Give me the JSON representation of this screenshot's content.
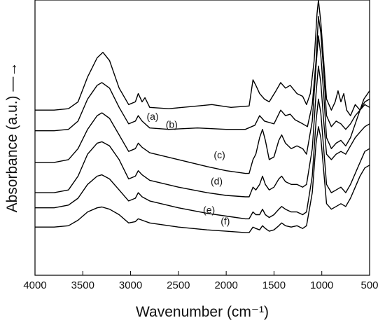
{
  "chart_data": {
    "type": "line",
    "title": "",
    "xlabel": "Wavenumber (cm⁻¹)",
    "ylabel": "Absorbance (a.u.) —→",
    "xlim": [
      4000,
      500
    ],
    "x_reversed": true,
    "y_ticks_shown": false,
    "grid": false,
    "legend": "none",
    "xticks": [
      4000,
      3500,
      3000,
      2500,
      2000,
      1500,
      1000,
      500
    ],
    "xtick_labels": [
      "4000",
      "3500",
      "3000",
      "2500",
      "2000",
      "1500",
      "1000",
      "500"
    ],
    "series": [
      {
        "name": "(a)",
        "label_at": [
          2770,
          0.565
        ],
        "points": [
          [
            4000,
            0.6
          ],
          [
            3800,
            0.6
          ],
          [
            3650,
            0.605
          ],
          [
            3550,
            0.63
          ],
          [
            3450,
            0.72
          ],
          [
            3350,
            0.79
          ],
          [
            3290,
            0.81
          ],
          [
            3220,
            0.78
          ],
          [
            3120,
            0.68
          ],
          [
            3020,
            0.62
          ],
          [
            2950,
            0.63
          ],
          [
            2920,
            0.66
          ],
          [
            2880,
            0.63
          ],
          [
            2850,
            0.645
          ],
          [
            2800,
            0.61
          ],
          [
            2600,
            0.605
          ],
          [
            2300,
            0.615
          ],
          [
            2150,
            0.62
          ],
          [
            1950,
            0.61
          ],
          [
            1760,
            0.615
          ],
          [
            1720,
            0.71
          ],
          [
            1690,
            0.69
          ],
          [
            1650,
            0.66
          ],
          [
            1600,
            0.64
          ],
          [
            1550,
            0.63
          ],
          [
            1480,
            0.67
          ],
          [
            1430,
            0.7
          ],
          [
            1380,
            0.68
          ],
          [
            1330,
            0.69
          ],
          [
            1260,
            0.66
          ],
          [
            1200,
            0.65
          ],
          [
            1160,
            0.62
          ],
          [
            1120,
            0.66
          ],
          [
            1080,
            0.78
          ],
          [
            1050,
            0.95
          ],
          [
            1035,
            1.0
          ],
          [
            1010,
            0.92
          ],
          [
            980,
            0.78
          ],
          [
            950,
            0.64
          ],
          [
            900,
            0.6
          ],
          [
            860,
            0.63
          ],
          [
            830,
            0.67
          ],
          [
            800,
            0.63
          ],
          [
            770,
            0.66
          ],
          [
            740,
            0.6
          ],
          [
            700,
            0.58
          ],
          [
            650,
            0.62
          ],
          [
            600,
            0.6
          ],
          [
            560,
            0.64
          ],
          [
            520,
            0.66
          ],
          [
            500,
            0.67
          ]
        ]
      },
      {
        "name": "(b)",
        "label_at": [
          2570,
          0.535
        ],
        "points": [
          [
            4000,
            0.525
          ],
          [
            3800,
            0.525
          ],
          [
            3650,
            0.53
          ],
          [
            3550,
            0.56
          ],
          [
            3450,
            0.64
          ],
          [
            3350,
            0.69
          ],
          [
            3300,
            0.7
          ],
          [
            3220,
            0.68
          ],
          [
            3120,
            0.61
          ],
          [
            3020,
            0.55
          ],
          [
            2950,
            0.56
          ],
          [
            2920,
            0.58
          ],
          [
            2880,
            0.56
          ],
          [
            2800,
            0.535
          ],
          [
            2600,
            0.53
          ],
          [
            2300,
            0.535
          ],
          [
            2000,
            0.53
          ],
          [
            1800,
            0.53
          ],
          [
            1700,
            0.545
          ],
          [
            1650,
            0.58
          ],
          [
            1600,
            0.56
          ],
          [
            1500,
            0.55
          ],
          [
            1430,
            0.6
          ],
          [
            1380,
            0.58
          ],
          [
            1330,
            0.585
          ],
          [
            1280,
            0.565
          ],
          [
            1200,
            0.55
          ],
          [
            1150,
            0.54
          ],
          [
            1100,
            0.62
          ],
          [
            1060,
            0.78
          ],
          [
            1035,
            0.94
          ],
          [
            1010,
            0.88
          ],
          [
            980,
            0.74
          ],
          [
            950,
            0.58
          ],
          [
            900,
            0.54
          ],
          [
            850,
            0.56
          ],
          [
            800,
            0.55
          ],
          [
            750,
            0.53
          ],
          [
            700,
            0.55
          ],
          [
            650,
            0.58
          ],
          [
            600,
            0.6
          ],
          [
            550,
            0.63
          ],
          [
            500,
            0.64
          ]
        ]
      },
      {
        "name": "(c)",
        "label_at": [
          2070,
          0.425
        ],
        "points": [
          [
            4000,
            0.41
          ],
          [
            3800,
            0.41
          ],
          [
            3650,
            0.42
          ],
          [
            3550,
            0.46
          ],
          [
            3450,
            0.53
          ],
          [
            3350,
            0.58
          ],
          [
            3300,
            0.59
          ],
          [
            3220,
            0.57
          ],
          [
            3120,
            0.51
          ],
          [
            3020,
            0.45
          ],
          [
            2950,
            0.46
          ],
          [
            2920,
            0.48
          ],
          [
            2880,
            0.465
          ],
          [
            2800,
            0.445
          ],
          [
            2500,
            0.42
          ],
          [
            2200,
            0.395
          ],
          [
            2000,
            0.38
          ],
          [
            1800,
            0.37
          ],
          [
            1760,
            0.37
          ],
          [
            1720,
            0.42
          ],
          [
            1690,
            0.44
          ],
          [
            1650,
            0.5
          ],
          [
            1620,
            0.53
          ],
          [
            1590,
            0.49
          ],
          [
            1550,
            0.42
          ],
          [
            1500,
            0.43
          ],
          [
            1450,
            0.49
          ],
          [
            1420,
            0.51
          ],
          [
            1380,
            0.48
          ],
          [
            1320,
            0.46
          ],
          [
            1260,
            0.47
          ],
          [
            1200,
            0.46
          ],
          [
            1160,
            0.44
          ],
          [
            1100,
            0.56
          ],
          [
            1060,
            0.76
          ],
          [
            1035,
            0.87
          ],
          [
            1010,
            0.8
          ],
          [
            980,
            0.66
          ],
          [
            950,
            0.5
          ],
          [
            900,
            0.46
          ],
          [
            850,
            0.48
          ],
          [
            800,
            0.49
          ],
          [
            750,
            0.47
          ],
          [
            700,
            0.5
          ],
          [
            650,
            0.55
          ],
          [
            600,
            0.6
          ],
          [
            550,
            0.62
          ],
          [
            500,
            0.61
          ]
        ]
      },
      {
        "name": "(d)",
        "label_at": [
          2100,
          0.33
        ],
        "points": [
          [
            4000,
            0.3
          ],
          [
            3800,
            0.3
          ],
          [
            3650,
            0.31
          ],
          [
            3550,
            0.36
          ],
          [
            3450,
            0.44
          ],
          [
            3350,
            0.48
          ],
          [
            3300,
            0.485
          ],
          [
            3220,
            0.47
          ],
          [
            3120,
            0.42
          ],
          [
            3020,
            0.35
          ],
          [
            2950,
            0.36
          ],
          [
            2920,
            0.38
          ],
          [
            2880,
            0.365
          ],
          [
            2800,
            0.345
          ],
          [
            2500,
            0.32
          ],
          [
            2200,
            0.3
          ],
          [
            2000,
            0.29
          ],
          [
            1800,
            0.285
          ],
          [
            1760,
            0.285
          ],
          [
            1720,
            0.32
          ],
          [
            1690,
            0.31
          ],
          [
            1650,
            0.33
          ],
          [
            1620,
            0.36
          ],
          [
            1590,
            0.33
          ],
          [
            1550,
            0.31
          ],
          [
            1500,
            0.32
          ],
          [
            1450,
            0.35
          ],
          [
            1420,
            0.36
          ],
          [
            1380,
            0.34
          ],
          [
            1320,
            0.33
          ],
          [
            1260,
            0.33
          ],
          [
            1200,
            0.32
          ],
          [
            1160,
            0.33
          ],
          [
            1100,
            0.46
          ],
          [
            1060,
            0.66
          ],
          [
            1035,
            0.76
          ],
          [
            1010,
            0.7
          ],
          [
            980,
            0.56
          ],
          [
            950,
            0.44
          ],
          [
            900,
            0.42
          ],
          [
            850,
            0.44
          ],
          [
            800,
            0.45
          ],
          [
            750,
            0.44
          ],
          [
            700,
            0.47
          ],
          [
            650,
            0.5
          ],
          [
            600,
            0.52
          ],
          [
            550,
            0.54
          ],
          [
            500,
            0.55
          ]
        ]
      },
      {
        "name": "(e)",
        "label_at": [
          2180,
          0.225
        ],
        "points": [
          [
            4000,
            0.245
          ],
          [
            3800,
            0.245
          ],
          [
            3650,
            0.255
          ],
          [
            3550,
            0.28
          ],
          [
            3450,
            0.33
          ],
          [
            3350,
            0.36
          ],
          [
            3300,
            0.365
          ],
          [
            3220,
            0.35
          ],
          [
            3120,
            0.31
          ],
          [
            3020,
            0.27
          ],
          [
            2950,
            0.28
          ],
          [
            2920,
            0.3
          ],
          [
            2880,
            0.285
          ],
          [
            2800,
            0.27
          ],
          [
            2500,
            0.245
          ],
          [
            2200,
            0.225
          ],
          [
            2000,
            0.215
          ],
          [
            1800,
            0.205
          ],
          [
            1760,
            0.205
          ],
          [
            1720,
            0.23
          ],
          [
            1690,
            0.22
          ],
          [
            1650,
            0.22
          ],
          [
            1620,
            0.24
          ],
          [
            1590,
            0.22
          ],
          [
            1550,
            0.21
          ],
          [
            1500,
            0.22
          ],
          [
            1450,
            0.24
          ],
          [
            1420,
            0.25
          ],
          [
            1380,
            0.24
          ],
          [
            1320,
            0.23
          ],
          [
            1260,
            0.23
          ],
          [
            1200,
            0.22
          ],
          [
            1160,
            0.23
          ],
          [
            1100,
            0.36
          ],
          [
            1060,
            0.56
          ],
          [
            1035,
            0.64
          ],
          [
            1010,
            0.59
          ],
          [
            980,
            0.46
          ],
          [
            950,
            0.33
          ],
          [
            900,
            0.3
          ],
          [
            850,
            0.31
          ],
          [
            800,
            0.32
          ],
          [
            750,
            0.3
          ],
          [
            700,
            0.33
          ],
          [
            650,
            0.37
          ],
          [
            600,
            0.41
          ],
          [
            550,
            0.45
          ],
          [
            500,
            0.46
          ]
        ]
      },
      {
        "name": "(f)",
        "label_at": [
          2010,
          0.185
        ],
        "points": [
          [
            4000,
            0.175
          ],
          [
            3800,
            0.175
          ],
          [
            3650,
            0.18
          ],
          [
            3550,
            0.2
          ],
          [
            3450,
            0.23
          ],
          [
            3350,
            0.245
          ],
          [
            3300,
            0.248
          ],
          [
            3220,
            0.24
          ],
          [
            3120,
            0.22
          ],
          [
            3020,
            0.19
          ],
          [
            2950,
            0.195
          ],
          [
            2920,
            0.205
          ],
          [
            2880,
            0.2
          ],
          [
            2800,
            0.19
          ],
          [
            2500,
            0.175
          ],
          [
            2200,
            0.165
          ],
          [
            2000,
            0.16
          ],
          [
            1800,
            0.155
          ],
          [
            1760,
            0.155
          ],
          [
            1720,
            0.175
          ],
          [
            1690,
            0.17
          ],
          [
            1650,
            0.165
          ],
          [
            1620,
            0.18
          ],
          [
            1590,
            0.17
          ],
          [
            1550,
            0.16
          ],
          [
            1500,
            0.165
          ],
          [
            1450,
            0.18
          ],
          [
            1420,
            0.19
          ],
          [
            1380,
            0.18
          ],
          [
            1320,
            0.175
          ],
          [
            1260,
            0.18
          ],
          [
            1200,
            0.17
          ],
          [
            1160,
            0.18
          ],
          [
            1100,
            0.3
          ],
          [
            1060,
            0.48
          ],
          [
            1035,
            0.54
          ],
          [
            1010,
            0.5
          ],
          [
            980,
            0.38
          ],
          [
            950,
            0.26
          ],
          [
            900,
            0.24
          ],
          [
            850,
            0.25
          ],
          [
            800,
            0.26
          ],
          [
            750,
            0.25
          ],
          [
            700,
            0.28
          ],
          [
            650,
            0.32
          ],
          [
            600,
            0.36
          ],
          [
            550,
            0.39
          ],
          [
            500,
            0.4
          ]
        ]
      }
    ]
  }
}
